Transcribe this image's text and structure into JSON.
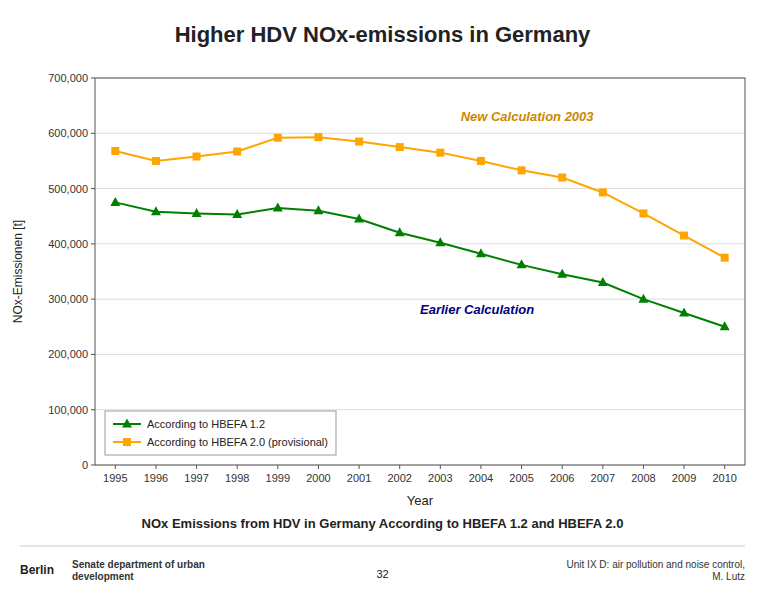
{
  "chart_data": {
    "type": "line",
    "title": "Higher HDV NOx-emissions in Germany",
    "subtitle": "NOx Emissions from HDV in Germany According to HBEFA 1.2 and HBEFA 2.0",
    "xlabel": "Year",
    "ylabel": "NOx-Emissionen [t]",
    "x": [
      1995,
      1996,
      1997,
      1998,
      1999,
      2000,
      2001,
      2002,
      2003,
      2004,
      2005,
      2006,
      2007,
      2008,
      2009,
      2010
    ],
    "series": [
      {
        "name": "According to HBEFA 1.2",
        "color": "#008000",
        "marker": "triangle",
        "values": [
          475000,
          458000,
          455000,
          453000,
          465000,
          460000,
          445000,
          420000,
          402000,
          382000,
          362000,
          345000,
          330000,
          300000,
          275000,
          250000
        ]
      },
      {
        "name": "According to HBEFA 2.0 (provisional)",
        "color": "#FFA500",
        "marker": "square",
        "values": [
          568000,
          550000,
          558000,
          567000,
          592000,
          593000,
          585000,
          575000,
          565000,
          550000,
          533000,
          520000,
          493000,
          455000,
          415000,
          375000
        ]
      }
    ],
    "xlim": [
      1994.5,
      2010.5
    ],
    "xticks": [
      1995,
      1996,
      1997,
      1998,
      1999,
      2000,
      2001,
      2002,
      2003,
      2004,
      2005,
      2006,
      2007,
      2008,
      2009,
      2010
    ],
    "ylim": [
      0,
      700000
    ],
    "yticks": [
      0,
      {
        "value": 100000,
        "label": "100,000"
      },
      {
        "value": 200000,
        "label": "200,000"
      },
      {
        "value": 300000,
        "label": "300,000"
      },
      {
        "value": 400000,
        "label": "400,000"
      },
      {
        "value": 500000,
        "label": "500,000"
      },
      {
        "value": 600000,
        "label": "600,000"
      },
      {
        "value": 700000,
        "label": "700,000"
      }
    ],
    "grid": true,
    "legend": "lower left",
    "annotations": [
      {
        "text": "New Calculation 2003",
        "color": "#CC8800"
      },
      {
        "text": "Earlier Calculation",
        "color": "#000080"
      }
    ],
    "footer": [
      "Berlin",
      "Senate department of urban\ndevelopment",
      "32",
      "Unit IX D: air pollution and noise control,\nM. Lutz"
    ]
  }
}
